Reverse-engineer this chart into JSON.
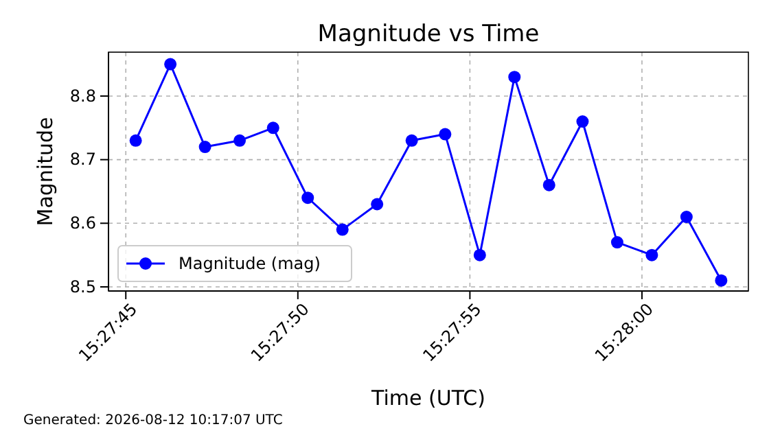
{
  "chart_data": {
    "type": "line",
    "title": "Magnitude vs Time",
    "xlabel": "Time (UTC)",
    "ylabel": "Magnitude",
    "x": [
      15.46258,
      15.46286,
      15.46314,
      15.46342,
      15.46369,
      15.46397,
      15.46425,
      15.46453,
      15.46481,
      15.46508,
      15.46536,
      15.46564,
      15.46592,
      15.46619,
      15.46647,
      15.46675,
      15.46703,
      15.46731
    ],
    "series": [
      {
        "name": "Magnitude (mag)",
        "color": "#0000ff",
        "values": [
          8.73,
          8.85,
          8.72,
          8.73,
          8.75,
          8.64,
          8.59,
          8.63,
          8.73,
          8.74,
          8.55,
          8.83,
          8.66,
          8.76,
          8.57,
          8.55,
          8.61,
          8.51
        ]
      }
    ],
    "xlim": [
      15.46236,
      15.46753
    ],
    "xticks": [
      {
        "value": 15.4625,
        "label": "15:27:45"
      },
      {
        "value": 15.46389,
        "label": "15:27:50"
      },
      {
        "value": 15.46528,
        "label": "15:27:55"
      },
      {
        "value": 15.46667,
        "label": "15:28:00"
      }
    ],
    "ylim": [
      8.4935,
      8.869
    ],
    "yticks": [
      {
        "value": 8.5,
        "label": "8.5"
      },
      {
        "value": 8.6,
        "label": "8.6"
      },
      {
        "value": 8.7,
        "label": "8.7"
      },
      {
        "value": 8.8,
        "label": "8.8"
      }
    ],
    "grid": true,
    "legend": "bottom left",
    "marker": "circle",
    "line_style": "solid",
    "annotations": [
      "Generated: 2026-08-12 10:17:07 UTC"
    ]
  }
}
